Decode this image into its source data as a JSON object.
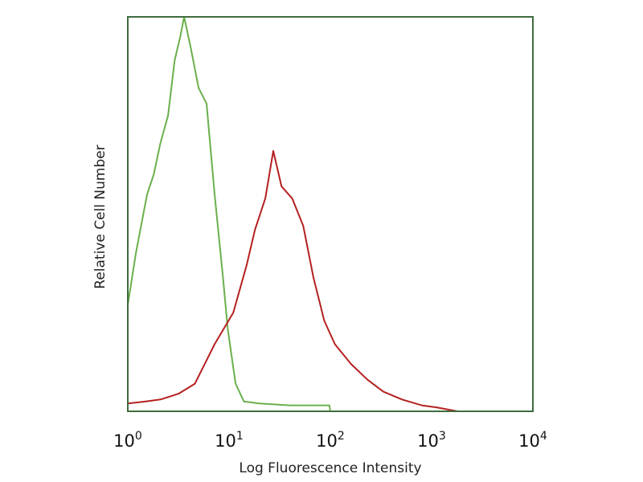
{
  "chart_data": {
    "type": "line",
    "title": "",
    "xlabel": "Log Fluorescence Intensity",
    "ylabel": "Relative Cell Number",
    "x_scale": "log",
    "xlim": [
      1,
      10000
    ],
    "ylim": [
      0,
      100
    ],
    "grid": false,
    "x_ticks": [
      {
        "base": "10",
        "exp": "0",
        "value": 1
      },
      {
        "base": "10",
        "exp": "1",
        "value": 10
      },
      {
        "base": "10",
        "exp": "2",
        "value": 100
      },
      {
        "base": "10",
        "exp": "3",
        "value": 1000
      },
      {
        "base": "10",
        "exp": "4",
        "value": 10000
      }
    ],
    "colors": {
      "frame": "#3f6b3f",
      "control": "#6ab04c",
      "stained": "#b52020"
    },
    "series": [
      {
        "color": "#6ab04c",
        "x": [
          1,
          1.2,
          1.55,
          1.8,
          2.1,
          2.5,
          2.9,
          3.3,
          3.6,
          4.2,
          5.0,
          6.0,
          7.2,
          8.7,
          9.7,
          11.6,
          14,
          20,
          40,
          70,
          98,
          100
        ],
        "y": [
          27,
          40,
          55,
          60,
          68,
          75,
          89,
          95,
          100,
          92,
          82,
          78,
          55,
          34,
          21,
          7,
          2.5,
          2,
          1.5,
          1.5,
          1.5,
          0
        ]
      },
      {
        "color": "#b52020",
        "x": [
          1,
          1.5,
          2.1,
          3.2,
          4.6,
          7.2,
          11,
          14.9,
          18,
          22.8,
          27.3,
          33,
          42,
          54,
          68,
          87,
          111,
          160,
          233,
          333,
          510,
          800,
          1120,
          1800
        ],
        "y": [
          2,
          2.5,
          3,
          4.5,
          7,
          17,
          25,
          37,
          46,
          54,
          66,
          57,
          54,
          47,
          34,
          23,
          17,
          12,
          8,
          5,
          3,
          1.5,
          1,
          0
        ]
      }
    ]
  }
}
